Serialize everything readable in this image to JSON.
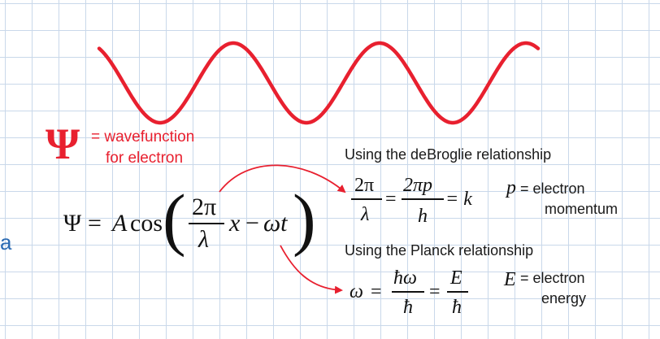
{
  "psi_legend": {
    "symbol": "Ψ",
    "definition_line1": "= wavefunction",
    "definition_line2": "for electron"
  },
  "main_equation": {
    "lhs": "Ψ",
    "equals": "=",
    "amplitude": "A",
    "func": "cos",
    "numerator": "2π",
    "denominator": "λ",
    "x": "x",
    "minus": "−",
    "omega_t": "ωt"
  },
  "debroglie": {
    "heading": "Using the deBroglie relationship",
    "frac1_num": "2π",
    "frac1_den": "λ",
    "eq1": "=",
    "frac2_num": "2πp",
    "frac2_den": "h",
    "eq2": "= k",
    "var": "p",
    "var_def_line1": "= electron",
    "var_def_line2": "momentum"
  },
  "planck": {
    "heading": "Using the Planck relationship",
    "lhs": "ω",
    "eq1": "=",
    "frac1_num": "ħω",
    "frac1_den": "ħ",
    "eq2": "=",
    "frac2_num": "E",
    "frac2_den": "ħ",
    "var": "E",
    "var_def_line1": "= electron",
    "var_def_line2": "energy"
  },
  "side_text": "a",
  "colors": {
    "wave": "#e8202f",
    "arrows": "#e8202f",
    "grid": "#c9d8ea",
    "side_text": "#2a6ab3"
  }
}
